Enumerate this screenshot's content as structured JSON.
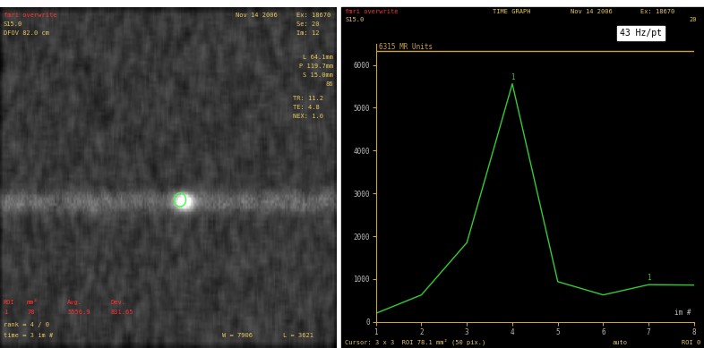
{
  "chart_data": {
    "type": "line",
    "title": "TIME GRAPH",
    "header_left": [
      "fmri overwrite",
      "S15.0"
    ],
    "header_right": [
      "Nov 14 2006",
      "Ex: 18670",
      "20"
    ],
    "rate": "43 Hz/pt",
    "max_line": {
      "value": 6315,
      "label": "6315 MR Units"
    },
    "x": [
      1,
      2,
      3,
      4,
      5,
      6,
      7,
      8
    ],
    "values": [
      200,
      630,
      1850,
      5560,
      940,
      630,
      870,
      860
    ],
    "color": "#33cc33",
    "xlim": [
      1,
      8
    ],
    "ylim": [
      0,
      6500
    ],
    "xticks": [
      1,
      2,
      3,
      4,
      5,
      6,
      7,
      8
    ],
    "yticks": [
      0,
      1000,
      2000,
      3000,
      4000,
      5000,
      6000
    ],
    "xlabel": "im #",
    "annotations": [
      {
        "x": 4,
        "y": 5560,
        "text": "1"
      },
      {
        "x": 7,
        "y": 870,
        "text": "1"
      }
    ],
    "footer": [
      "Cursor: 3 x 3  ROI 78.1 mm² (50 pix.)",
      "auto",
      "ROI 0"
    ]
  },
  "image_panel": {
    "header_left": [
      "fmri overwrite",
      "S15.0",
      "DFOV 82.0 cm"
    ],
    "date": "Nov 14 2006",
    "header_right": [
      "Ex: 18670",
      "Se: 20",
      "Im: 12"
    ],
    "geometry": [
      "L 64.1mm",
      "P 119.7mm",
      "S 15.0mm",
      "86"
    ],
    "params": [
      "TR: 11.2",
      "TE: 4.8",
      "NEX: 1.0"
    ],
    "roi_table": {
      "header": [
        "ROI",
        "mm²",
        "Avg.",
        "Dev."
      ],
      "row": [
        "1",
        "78",
        "5556.9",
        "831.65"
      ]
    },
    "footer": [
      "rank = 4 / 0",
      "time = 3 im #"
    ],
    "window": [
      "W = 7906",
      "L = 3621"
    ]
  }
}
